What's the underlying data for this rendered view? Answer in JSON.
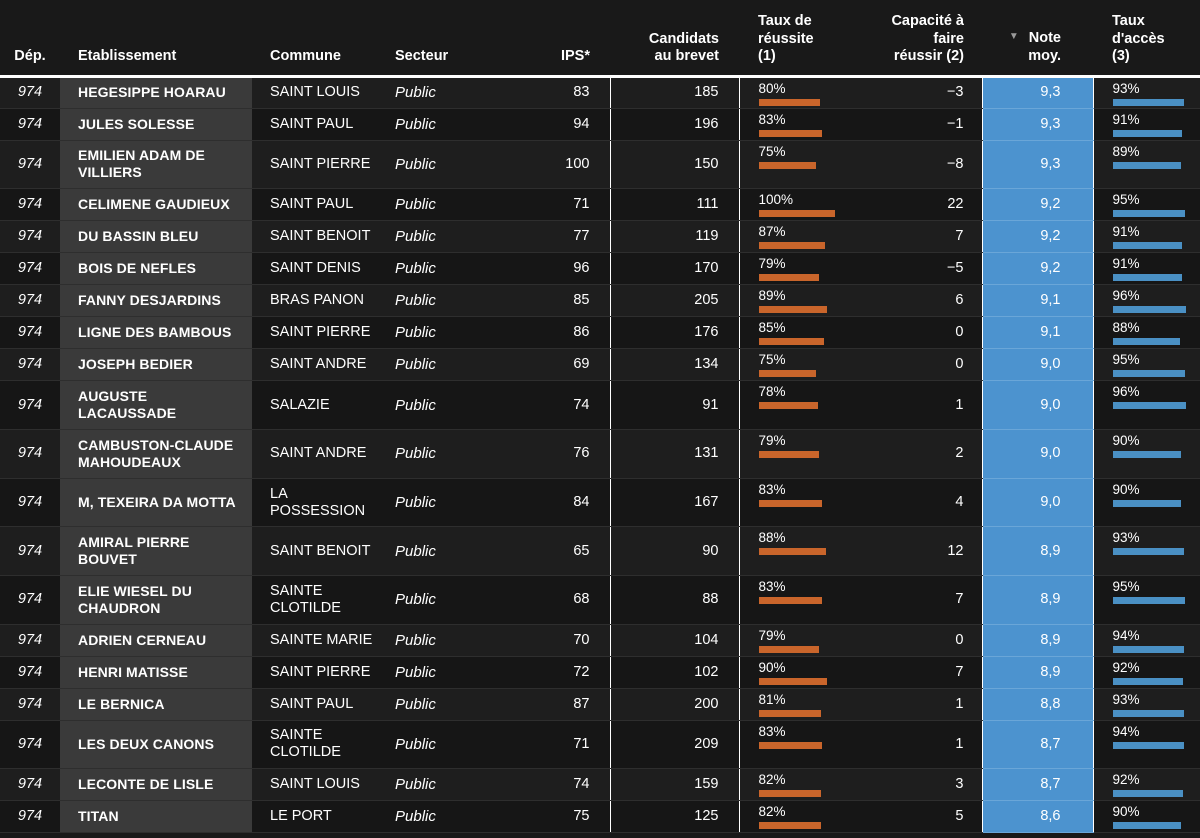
{
  "columns": {
    "dep": "Dép.",
    "etab": "Etablissement",
    "commune": "Commune",
    "secteur": "Secteur",
    "ips": "IPS*",
    "candidats": [
      "Candidats",
      "au brevet"
    ],
    "taux_reussite": [
      "Taux de",
      "réussite",
      "(1)"
    ],
    "capacite": [
      "Capacité à",
      "faire",
      "réussir (2)"
    ],
    "note": [
      "Note",
      "moy."
    ],
    "taux_acces": [
      "Taux",
      "d'accès",
      "(3)"
    ]
  },
  "colors": {
    "reussite_bar": "#c9652b",
    "acces_bar": "#4a90c4",
    "note_highlight": "#4c93cf"
  },
  "chart_data": {
    "type": "table",
    "rows": [
      {
        "dep": "974",
        "etab": "HEGESIPPE HOARAU",
        "commune": "SAINT LOUIS",
        "secteur": "Public",
        "ips": "83",
        "candidats": "185",
        "reussite": 80,
        "capacite": "−3",
        "note": "9,3",
        "acces": 93
      },
      {
        "dep": "974",
        "etab": "JULES SOLESSE",
        "commune": "SAINT PAUL",
        "secteur": "Public",
        "ips": "94",
        "candidats": "196",
        "reussite": 83,
        "capacite": "−1",
        "note": "9,3",
        "acces": 91
      },
      {
        "dep": "974",
        "etab": "EMILIEN ADAM DE VILLIERS",
        "commune": "SAINT PIERRE",
        "secteur": "Public",
        "ips": "100",
        "candidats": "150",
        "reussite": 75,
        "capacite": "−8",
        "note": "9,3",
        "acces": 89
      },
      {
        "dep": "974",
        "etab": "CELIMENE GAUDIEUX",
        "commune": "SAINT PAUL",
        "secteur": "Public",
        "ips": "71",
        "candidats": "111",
        "reussite": 100,
        "capacite": "22",
        "note": "9,2",
        "acces": 95
      },
      {
        "dep": "974",
        "etab": "DU BASSIN BLEU",
        "commune": "SAINT BENOIT",
        "secteur": "Public",
        "ips": "77",
        "candidats": "119",
        "reussite": 87,
        "capacite": "7",
        "note": "9,2",
        "acces": 91
      },
      {
        "dep": "974",
        "etab": "BOIS DE NEFLES",
        "commune": "SAINT DENIS",
        "secteur": "Public",
        "ips": "96",
        "candidats": "170",
        "reussite": 79,
        "capacite": "−5",
        "note": "9,2",
        "acces": 91
      },
      {
        "dep": "974",
        "etab": "FANNY DESJARDINS",
        "commune": "BRAS PANON",
        "secteur": "Public",
        "ips": "85",
        "candidats": "205",
        "reussite": 89,
        "capacite": "6",
        "note": "9,1",
        "acces": 96
      },
      {
        "dep": "974",
        "etab": "LIGNE DES BAMBOUS",
        "commune": "SAINT PIERRE",
        "secteur": "Public",
        "ips": "86",
        "candidats": "176",
        "reussite": 85,
        "capacite": "0",
        "note": "9,1",
        "acces": 88
      },
      {
        "dep": "974",
        "etab": "JOSEPH BEDIER",
        "commune": "SAINT ANDRE",
        "secteur": "Public",
        "ips": "69",
        "candidats": "134",
        "reussite": 75,
        "capacite": "0",
        "note": "9,0",
        "acces": 95
      },
      {
        "dep": "974",
        "etab": "AUGUSTE LACAUSSADE",
        "commune": "SALAZIE",
        "secteur": "Public",
        "ips": "74",
        "candidats": "91",
        "reussite": 78,
        "capacite": "1",
        "note": "9,0",
        "acces": 96
      },
      {
        "dep": "974",
        "etab": "CAMBUSTON-CLAUDE MAHOUDEAUX",
        "commune": "SAINT ANDRE",
        "secteur": "Public",
        "ips": "76",
        "candidats": "131",
        "reussite": 79,
        "capacite": "2",
        "note": "9,0",
        "acces": 90
      },
      {
        "dep": "974",
        "etab": "M, TEXEIRA DA MOTTA",
        "commune": "LA POSSESSION",
        "secteur": "Public",
        "ips": "84",
        "candidats": "167",
        "reussite": 83,
        "capacite": "4",
        "note": "9,0",
        "acces": 90
      },
      {
        "dep": "974",
        "etab": "AMIRAL PIERRE BOUVET",
        "commune": "SAINT BENOIT",
        "secteur": "Public",
        "ips": "65",
        "candidats": "90",
        "reussite": 88,
        "capacite": "12",
        "note": "8,9",
        "acces": 93
      },
      {
        "dep": "974",
        "etab": "ELIE WIESEL DU CHAUDRON",
        "commune": "SAINTE CLOTILDE",
        "secteur": "Public",
        "ips": "68",
        "candidats": "88",
        "reussite": 83,
        "capacite": "7",
        "note": "8,9",
        "acces": 95
      },
      {
        "dep": "974",
        "etab": "ADRIEN CERNEAU",
        "commune": "SAINTE MARIE",
        "secteur": "Public",
        "ips": "70",
        "candidats": "104",
        "reussite": 79,
        "capacite": "0",
        "note": "8,9",
        "acces": 94
      },
      {
        "dep": "974",
        "etab": "HENRI MATISSE",
        "commune": "SAINT PIERRE",
        "secteur": "Public",
        "ips": "72",
        "candidats": "102",
        "reussite": 90,
        "capacite": "7",
        "note": "8,9",
        "acces": 92
      },
      {
        "dep": "974",
        "etab": "LE BERNICA",
        "commune": "SAINT PAUL",
        "secteur": "Public",
        "ips": "87",
        "candidats": "200",
        "reussite": 81,
        "capacite": "1",
        "note": "8,8",
        "acces": 93
      },
      {
        "dep": "974",
        "etab": "LES DEUX CANONS",
        "commune": "SAINTE CLOTILDE",
        "secteur": "Public",
        "ips": "71",
        "candidats": "209",
        "reussite": 83,
        "capacite": "1",
        "note": "8,7",
        "acces": 94
      },
      {
        "dep": "974",
        "etab": "LECONTE DE LISLE",
        "commune": "SAINT LOUIS",
        "secteur": "Public",
        "ips": "74",
        "candidats": "159",
        "reussite": 82,
        "capacite": "3",
        "note": "8,7",
        "acces": 92
      },
      {
        "dep": "974",
        "etab": "TITAN",
        "commune": "LE PORT",
        "secteur": "Public",
        "ips": "75",
        "candidats": "125",
        "reussite": 82,
        "capacite": "5",
        "note": "8,6",
        "acces": 90
      }
    ]
  }
}
